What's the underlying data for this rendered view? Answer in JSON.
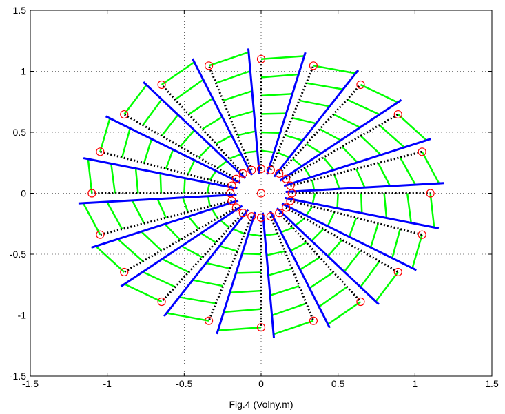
{
  "chart_data": {
    "type": "line",
    "title": "",
    "xlabel": "Fig.4 (Volny.m)",
    "ylabel": "",
    "xlim": [
      -1.5,
      1.5
    ],
    "ylim": [
      -1.5,
      1.5
    ],
    "xticks": [
      -1.5,
      -1,
      -0.5,
      0,
      0.5,
      1,
      1.5
    ],
    "yticks": [
      -1.5,
      -1,
      -0.5,
      0,
      0.5,
      1,
      1.5
    ],
    "xtick_labels": [
      "-1.5",
      "-1",
      "-0.5",
      "0",
      "0.5",
      "1",
      "1.5"
    ],
    "ytick_labels": [
      "-1.5",
      "-1",
      "-0.5",
      "0",
      "0.5",
      "1",
      "1.5"
    ],
    "grid": true,
    "legend": "none",
    "colors": {
      "pivot_circles": "#ff0000",
      "dotted_arms": "#000000",
      "blades": "#0000ff",
      "connectors": "#00ff00"
    },
    "spokes": {
      "count": 20,
      "start_angle_deg": 0,
      "step_deg": 18,
      "pivot_radius": [
        0.2,
        0.35,
        0.5,
        0.65,
        0.8,
        0.95,
        1.1
      ],
      "blade_start_radius": 0.16,
      "blade_end_radius": 1.19,
      "blade_angle_offset_deg": -14,
      "connector_fractions": [
        0.18,
        0.34,
        0.5,
        0.66,
        0.82,
        0.97
      ]
    },
    "center_marker": [
      0,
      0
    ]
  }
}
